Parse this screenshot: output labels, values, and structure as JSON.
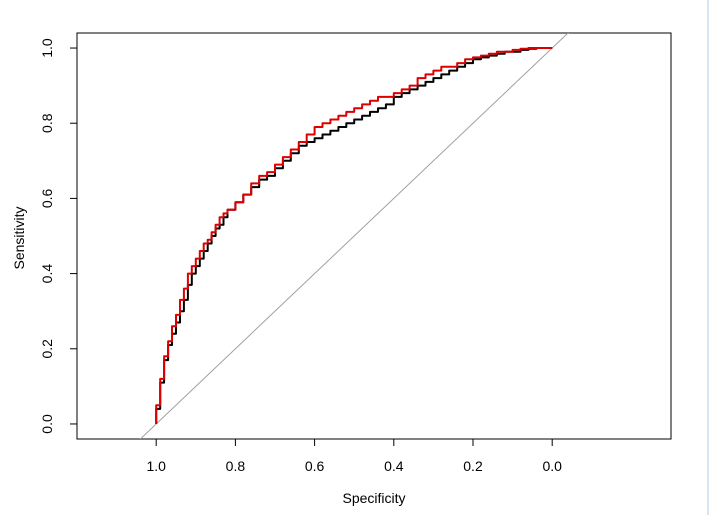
{
  "chart_data": {
    "type": "line",
    "title": "",
    "xlabel": "Specificity",
    "ylabel": "Sensitivity",
    "xlim": [
      1.2,
      -0.3
    ],
    "ylim": [
      -0.04,
      1.04
    ],
    "x_reversed": true,
    "grid": false,
    "legend": "none",
    "x_ticks": [
      1.0,
      0.8,
      0.6,
      0.4,
      0.2,
      0.0
    ],
    "x_tick_labels": [
      "1.0",
      "0.8",
      "0.6",
      "0.4",
      "0.2",
      "0.0"
    ],
    "y_ticks": [
      0.0,
      0.2,
      0.4,
      0.6,
      0.8,
      1.0
    ],
    "y_tick_labels": [
      "0.0",
      "0.2",
      "0.4",
      "0.6",
      "0.8",
      "1.0"
    ],
    "reference_line": {
      "from": [
        1.0,
        0.0
      ],
      "to": [
        0.0,
        1.0
      ],
      "color": "#a0a0a0"
    },
    "series": [
      {
        "color": "#000000",
        "x": [
          1.0,
          1.0,
          0.99,
          0.98,
          0.97,
          0.96,
          0.95,
          0.94,
          0.93,
          0.92,
          0.91,
          0.9,
          0.89,
          0.88,
          0.87,
          0.86,
          0.85,
          0.84,
          0.83,
          0.82,
          0.8,
          0.78,
          0.76,
          0.74,
          0.72,
          0.7,
          0.68,
          0.66,
          0.64,
          0.62,
          0.6,
          0.58,
          0.56,
          0.54,
          0.52,
          0.5,
          0.48,
          0.46,
          0.44,
          0.42,
          0.4,
          0.38,
          0.36,
          0.34,
          0.32,
          0.3,
          0.28,
          0.26,
          0.24,
          0.22,
          0.2,
          0.18,
          0.16,
          0.14,
          0.12,
          0.1,
          0.08,
          0.06,
          0.04,
          0.02,
          0.0
        ],
        "y": [
          0.0,
          0.04,
          0.11,
          0.17,
          0.21,
          0.24,
          0.27,
          0.3,
          0.33,
          0.37,
          0.4,
          0.42,
          0.44,
          0.46,
          0.48,
          0.5,
          0.52,
          0.53,
          0.55,
          0.57,
          0.59,
          0.61,
          0.63,
          0.65,
          0.66,
          0.68,
          0.7,
          0.72,
          0.74,
          0.75,
          0.76,
          0.77,
          0.78,
          0.79,
          0.8,
          0.81,
          0.82,
          0.83,
          0.84,
          0.85,
          0.87,
          0.88,
          0.89,
          0.9,
          0.91,
          0.92,
          0.93,
          0.94,
          0.95,
          0.96,
          0.97,
          0.975,
          0.98,
          0.985,
          0.99,
          0.99,
          0.995,
          0.998,
          1.0,
          1.0,
          1.0
        ]
      },
      {
        "color": "#dd0000",
        "x": [
          1.0,
          1.0,
          0.99,
          0.98,
          0.97,
          0.96,
          0.95,
          0.94,
          0.93,
          0.92,
          0.91,
          0.9,
          0.89,
          0.88,
          0.87,
          0.86,
          0.85,
          0.84,
          0.83,
          0.82,
          0.8,
          0.78,
          0.76,
          0.74,
          0.72,
          0.7,
          0.68,
          0.66,
          0.64,
          0.62,
          0.6,
          0.58,
          0.56,
          0.54,
          0.52,
          0.5,
          0.48,
          0.46,
          0.44,
          0.42,
          0.4,
          0.38,
          0.36,
          0.34,
          0.32,
          0.3,
          0.28,
          0.26,
          0.24,
          0.22,
          0.2,
          0.18,
          0.16,
          0.14,
          0.12,
          0.1,
          0.08,
          0.06,
          0.04,
          0.02,
          0.0
        ],
        "y": [
          0.0,
          0.05,
          0.12,
          0.18,
          0.22,
          0.26,
          0.29,
          0.33,
          0.36,
          0.4,
          0.42,
          0.44,
          0.46,
          0.48,
          0.49,
          0.51,
          0.53,
          0.55,
          0.56,
          0.57,
          0.59,
          0.61,
          0.64,
          0.66,
          0.67,
          0.69,
          0.71,
          0.73,
          0.75,
          0.77,
          0.79,
          0.8,
          0.81,
          0.82,
          0.83,
          0.84,
          0.85,
          0.86,
          0.87,
          0.87,
          0.88,
          0.89,
          0.9,
          0.92,
          0.93,
          0.94,
          0.95,
          0.95,
          0.96,
          0.97,
          0.975,
          0.98,
          0.985,
          0.99,
          0.99,
          0.995,
          0.998,
          1.0,
          1.0,
          1.0,
          1.0
        ]
      }
    ]
  }
}
